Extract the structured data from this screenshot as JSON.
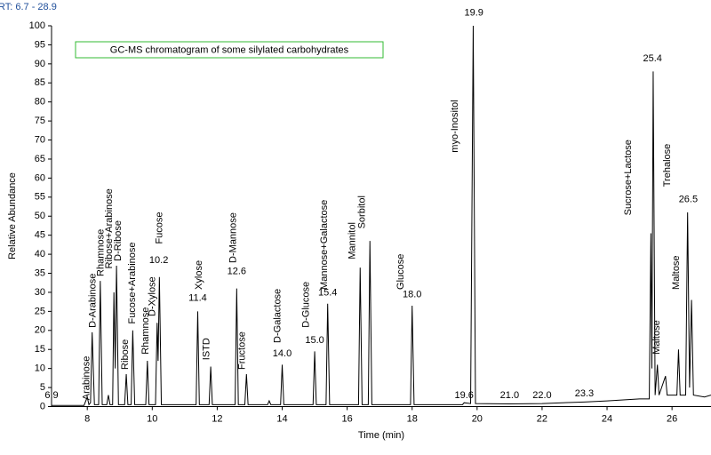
{
  "chart_data": {
    "type": "line",
    "subtitle": "RT: 6.7 - 28.9",
    "title": "GC-MS chromatogram of some silylated carbohydrates",
    "x_label": "Time (min)",
    "y_label": "Relative Abundance",
    "color": "#000000",
    "xlim": [
      6.9,
      27.2
    ],
    "ylim": [
      0,
      100
    ],
    "xticks": [
      8,
      10,
      12,
      14,
      16,
      18,
      20,
      22,
      24,
      26
    ],
    "yticks": [
      0,
      5,
      10,
      15,
      20,
      25,
      30,
      35,
      40,
      45,
      50,
      55,
      60,
      65,
      70,
      75,
      80,
      85,
      90,
      95,
      100
    ],
    "x": [
      6.9,
      7.9,
      8.0,
      8.05,
      8.1,
      8.15,
      8.22,
      8.35,
      8.4,
      8.46,
      8.6,
      8.65,
      8.7,
      8.78,
      8.82,
      8.86,
      8.9,
      8.96,
      9.15,
      9.2,
      9.25,
      9.35,
      9.4,
      9.46,
      9.8,
      9.85,
      9.9,
      10.1,
      10.15,
      10.18,
      10.22,
      10.28,
      11.35,
      11.4,
      11.45,
      11.75,
      11.8,
      11.85,
      12.55,
      12.6,
      12.65,
      12.85,
      12.9,
      12.95,
      13.55,
      13.6,
      13.65,
      13.95,
      14.0,
      14.05,
      14.95,
      15.0,
      15.05,
      15.35,
      15.4,
      15.46,
      16.35,
      16.4,
      16.46,
      16.65,
      16.7,
      16.76,
      17.95,
      18.0,
      18.06,
      19.55,
      19.6,
      19.8,
      19.88,
      19.95,
      21.0,
      22.0,
      23.3,
      24.0,
      25.0,
      25.3,
      25.35,
      25.38,
      25.42,
      25.48,
      25.55,
      25.6,
      25.8,
      25.85,
      26.15,
      26.2,
      26.25,
      26.42,
      26.48,
      26.54,
      26.6,
      26.66,
      27.0,
      27.2
    ],
    "values": [
      0.3,
      0.3,
      2.5,
      0.5,
      1,
      19.5,
      0.5,
      0.5,
      33,
      0.5,
      0.5,
      3,
      0.5,
      0.5,
      30,
      10,
      37,
      0.5,
      0.5,
      8.5,
      0.5,
      0.5,
      20,
      0.5,
      0.5,
      12,
      0.5,
      0.5,
      22,
      12,
      34,
      0.5,
      0.5,
      25,
      0.5,
      0.5,
      10.5,
      0.5,
      0.5,
      31,
      0.5,
      0.5,
      8.5,
      0.5,
      0.5,
      1.5,
      0.5,
      0.5,
      11,
      0.5,
      0.5,
      14.5,
      0.5,
      0.5,
      27,
      0.5,
      0.5,
      36.5,
      0.5,
      0.5,
      43.5,
      0.5,
      0.5,
      26.5,
      0.5,
      0.5,
      1,
      0.8,
      100,
      0.8,
      0.7,
      0.8,
      1.2,
      1.5,
      2,
      2,
      45.5,
      10,
      88,
      3,
      11,
      3,
      8,
      3,
      3,
      15,
      3,
      3,
      51,
      5,
      28,
      3,
      2.5,
      3
    ],
    "peak_labels": [
      {
        "label": "6.9",
        "x": 6.9,
        "y": 1.5
      },
      {
        "label": "10.2",
        "x": 10.2,
        "y": 37
      },
      {
        "label": "11.4",
        "x": 11.4,
        "y": 27
      },
      {
        "label": "12.6",
        "x": 12.6,
        "y": 34
      },
      {
        "label": "14.0",
        "x": 14.0,
        "y": 12.5
      },
      {
        "label": "15.0",
        "x": 15.0,
        "y": 16
      },
      {
        "label": "15.4",
        "x": 15.4,
        "y": 28.5
      },
      {
        "label": "18.0",
        "x": 18.0,
        "y": 28
      },
      {
        "label": "19.6",
        "x": 19.6,
        "y": 1.5
      },
      {
        "label": "19.9",
        "x": 19.9,
        "y": 102
      },
      {
        "label": "21.0",
        "x": 21.0,
        "y": 1.5
      },
      {
        "label": "22.0",
        "x": 22.0,
        "y": 1.5
      },
      {
        "label": "23.3",
        "x": 23.3,
        "y": 2
      },
      {
        "label": "25.4",
        "x": 25.4,
        "y": 90
      },
      {
        "label": "26.5",
        "x": 26.5,
        "y": 53
      }
    ],
    "compound_labels": [
      {
        "text": "Arabinose",
        "x": 7.98,
        "y": 1
      },
      {
        "text": "D-Arabinose",
        "x": 8.17,
        "y": 20
      },
      {
        "text": "Rhamnose",
        "x": 8.42,
        "y": 33.5
      },
      {
        "text": "Ribose+Arabinose",
        "x": 8.68,
        "y": 35.5
      },
      {
        "text": "D-Ribose",
        "x": 8.95,
        "y": 37.5
      },
      {
        "text": "Ribose",
        "x": 9.17,
        "y": 9
      },
      {
        "text": "Fucose+Arabinose",
        "x": 9.39,
        "y": 21
      },
      {
        "text": "Rhamnose",
        "x": 9.8,
        "y": 13
      },
      {
        "text": "D-Xylose",
        "x": 10.01,
        "y": 23
      },
      {
        "text": "Fucose",
        "x": 10.23,
        "y": 42
      },
      {
        "text": "Xylose",
        "x": 11.44,
        "y": 30
      },
      {
        "text": "ISTD",
        "x": 11.68,
        "y": 11.5
      },
      {
        "text": "D-Mannose",
        "x": 12.5,
        "y": 37
      },
      {
        "text": "Fructose",
        "x": 12.77,
        "y": 9
      },
      {
        "text": "D-Galactose",
        "x": 13.87,
        "y": 16
      },
      {
        "text": "D-Glucose",
        "x": 14.74,
        "y": 20
      },
      {
        "text": "Mannose+Galactose",
        "x": 15.3,
        "y": 30
      },
      {
        "text": "Mannitol",
        "x": 16.16,
        "y": 38
      },
      {
        "text": "Sorbitol",
        "x": 16.46,
        "y": 46
      },
      {
        "text": "Glucose",
        "x": 17.66,
        "y": 30
      },
      {
        "text": "myo-Inositol",
        "x": 19.33,
        "y": 66
      },
      {
        "text": "Sucrose+Lactose",
        "x": 24.66,
        "y": 49.5
      },
      {
        "text": "Maltose",
        "x": 25.53,
        "y": 13
      },
      {
        "text": "Trehalose",
        "x": 25.86,
        "y": 57
      },
      {
        "text": "Maltose",
        "x": 26.13,
        "y": 30
      }
    ]
  }
}
